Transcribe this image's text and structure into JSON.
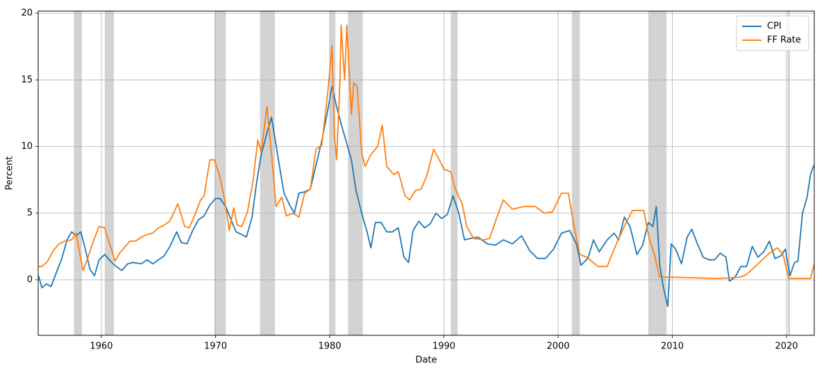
{
  "chart_data": {
    "type": "line",
    "xlabel": "Date",
    "ylabel": "Percent",
    "xlim": [
      1954.47,
      2022.43
    ],
    "ylim": [
      -4.16,
      20.16
    ],
    "xticks": [
      1960,
      1970,
      1980,
      1990,
      2000,
      2010,
      2020
    ],
    "yticks": [
      0,
      5,
      10,
      15,
      20
    ],
    "grid": true,
    "legend": "upper right",
    "recessions": [
      [
        1957.6,
        1958.3
      ],
      [
        1960.3,
        1961.1
      ],
      [
        1969.9,
        1970.9
      ],
      [
        1973.9,
        1975.2
      ],
      [
        1980.0,
        1980.5
      ],
      [
        1981.6,
        1982.9
      ],
      [
        1990.6,
        1991.2
      ],
      [
        2001.2,
        2001.9
      ],
      [
        2007.9,
        2009.5
      ],
      [
        2020.1,
        2020.3
      ]
    ],
    "recession_color": "#d3d3d3",
    "series": [
      {
        "name": "CPI",
        "color": "#1f77b4",
        "x": [
          1954.5,
          1954.8,
          1955.2,
          1955.6,
          1956.0,
          1956.5,
          1957.0,
          1957.4,
          1957.8,
          1958.2,
          1958.6,
          1959.0,
          1959.4,
          1959.8,
          1960.3,
          1960.8,
          1961.3,
          1961.8,
          1962.3,
          1962.8,
          1963.5,
          1964.0,
          1964.5,
          1965.0,
          1965.5,
          1966.0,
          1966.6,
          1967.0,
          1967.5,
          1968.0,
          1968.5,
          1969.0,
          1969.5,
          1970.0,
          1970.4,
          1970.9,
          1971.4,
          1971.8,
          1972.3,
          1972.7,
          1973.2,
          1973.6,
          1974.0,
          1974.5,
          1974.9,
          1975.3,
          1975.7,
          1976.0,
          1976.5,
          1976.9,
          1977.3,
          1977.8,
          1978.3,
          1978.8,
          1979.3,
          1979.8,
          1980.2,
          1980.6,
          1981.0,
          1981.5,
          1981.9,
          1982.3,
          1982.8,
          1983.3,
          1983.6,
          1984.0,
          1984.5,
          1985.0,
          1985.5,
          1986.0,
          1986.5,
          1986.9,
          1987.3,
          1987.8,
          1988.3,
          1988.8,
          1989.3,
          1989.8,
          1990.3,
          1990.8,
          1991.3,
          1991.8,
          1992.3,
          1993.0,
          1993.8,
          1994.5,
          1995.2,
          1996.0,
          1996.8,
          1997.5,
          1998.2,
          1998.9,
          1999.6,
          2000.3,
          2001.0,
          2001.6,
          2002.0,
          2002.6,
          2003.1,
          2003.6,
          2004.3,
          2004.9,
          2005.3,
          2005.8,
          2006.3,
          2006.9,
          2007.4,
          2007.9,
          2008.3,
          2008.6,
          2008.9,
          2009.2,
          2009.6,
          2009.9,
          2010.3,
          2010.8,
          2011.3,
          2011.7,
          2012.2,
          2012.7,
          2013.2,
          2013.7,
          2014.2,
          2014.7,
          2015.0,
          2015.5,
          2016.0,
          2016.5,
          2017.0,
          2017.5,
          2018.0,
          2018.5,
          2019.0,
          2019.5,
          2019.9,
          2020.3,
          2020.7,
          2021.0,
          2021.4,
          2021.8,
          2022.1,
          2022.4
        ],
        "values": [
          0.3,
          -0.6,
          -0.3,
          -0.5,
          0.4,
          1.5,
          3.0,
          3.6,
          3.3,
          3.6,
          2.3,
          0.8,
          0.3,
          1.5,
          1.9,
          1.4,
          1.0,
          0.7,
          1.2,
          1.3,
          1.2,
          1.5,
          1.2,
          1.5,
          1.8,
          2.5,
          3.6,
          2.8,
          2.7,
          3.7,
          4.5,
          4.8,
          5.6,
          6.1,
          6.1,
          5.5,
          4.4,
          3.6,
          3.4,
          3.2,
          4.7,
          7.3,
          9.4,
          11.0,
          12.2,
          10.1,
          8.0,
          6.5,
          5.6,
          5.0,
          6.5,
          6.6,
          6.8,
          8.6,
          10.4,
          12.6,
          14.5,
          13.0,
          11.7,
          10.2,
          9.0,
          6.7,
          5.0,
          3.5,
          2.4,
          4.3,
          4.3,
          3.6,
          3.6,
          3.9,
          1.7,
          1.3,
          3.7,
          4.4,
          3.9,
          4.2,
          5.0,
          4.6,
          4.9,
          6.3,
          5.0,
          3.0,
          3.1,
          3.2,
          2.7,
          2.6,
          3.0,
          2.7,
          3.3,
          2.2,
          1.6,
          1.6,
          2.3,
          3.5,
          3.7,
          2.7,
          1.1,
          1.6,
          3.0,
          2.1,
          3.0,
          3.5,
          3.0,
          4.7,
          4.0,
          1.9,
          2.6,
          4.3,
          4.0,
          5.5,
          1.1,
          -0.5,
          -2.0,
          2.7,
          2.3,
          1.2,
          3.2,
          3.8,
          2.7,
          1.7,
          1.5,
          1.5,
          2.0,
          1.7,
          -0.1,
          0.2,
          1.0,
          1.0,
          2.5,
          1.7,
          2.1,
          2.9,
          1.6,
          1.8,
          2.3,
          0.3,
          1.3,
          1.4,
          5.0,
          6.2,
          7.9,
          8.6
        ]
      },
      {
        "name": "FF Rate",
        "color": "#ff7f0e",
        "x": [
          1954.5,
          1954.8,
          1955.3,
          1955.8,
          1956.3,
          1956.8,
          1957.4,
          1957.8,
          1958.1,
          1958.4,
          1958.8,
          1959.3,
          1959.8,
          1960.3,
          1960.8,
          1961.2,
          1961.6,
          1962.0,
          1962.5,
          1963.0,
          1963.5,
          1964.0,
          1964.5,
          1965.0,
          1965.5,
          1966.0,
          1966.7,
          1967.3,
          1967.7,
          1968.2,
          1968.7,
          1969.0,
          1969.5,
          1969.9,
          1970.3,
          1970.8,
          1971.2,
          1971.6,
          1971.9,
          1972.3,
          1972.8,
          1973.3,
          1973.7,
          1974.0,
          1974.5,
          1974.9,
          1975.3,
          1975.8,
          1976.2,
          1976.8,
          1977.3,
          1977.8,
          1978.3,
          1978.8,
          1979.3,
          1979.8,
          1980.2,
          1980.4,
          1980.6,
          1980.9,
          1981.0,
          1981.3,
          1981.5,
          1981.9,
          1982.1,
          1982.4,
          1982.8,
          1983.1,
          1983.6,
          1984.2,
          1984.6,
          1985.0,
          1985.6,
          1986.0,
          1986.6,
          1987.0,
          1987.5,
          1988.0,
          1988.5,
          1989.1,
          1989.6,
          1990.0,
          1990.6,
          1991.0,
          1991.6,
          1992.0,
          1992.6,
          1993.5,
          1994.0,
          1994.6,
          1995.2,
          1996.0,
          1997.0,
          1998.0,
          1998.8,
          1999.5,
          2000.3,
          2000.9,
          2001.4,
          2001.9,
          2002.5,
          2003.5,
          2004.3,
          2005.0,
          2005.9,
          2006.5,
          2007.5,
          2008.0,
          2008.4,
          2008.9,
          2010,
          2012,
          2014,
          2015.9,
          2016.5,
          2017.5,
          2018.5,
          2019.2,
          2019.7,
          2020.2,
          2021.5,
          2022.1,
          2022.43
        ],
        "values": [
          1.0,
          1.0,
          1.4,
          2.2,
          2.7,
          2.9,
          3.0,
          3.5,
          2.0,
          0.7,
          1.6,
          2.9,
          4.0,
          3.9,
          2.5,
          1.4,
          2.0,
          2.4,
          2.9,
          2.9,
          3.2,
          3.4,
          3.5,
          3.9,
          4.1,
          4.4,
          5.7,
          4.0,
          3.9,
          4.9,
          6.0,
          6.3,
          9.0,
          9.0,
          8.0,
          6.0,
          3.7,
          5.4,
          4.1,
          4.0,
          5.1,
          7.5,
          10.5,
          9.6,
          13.0,
          9.5,
          5.5,
          6.2,
          4.8,
          5.0,
          4.7,
          6.5,
          6.8,
          9.8,
          10.1,
          13.8,
          17.6,
          11.0,
          9.0,
          15.0,
          19.1,
          15.0,
          19.1,
          12.4,
          14.8,
          14.5,
          9.5,
          8.5,
          9.4,
          10.0,
          11.6,
          8.5,
          7.9,
          8.1,
          6.3,
          6.0,
          6.7,
          6.8,
          7.8,
          9.8,
          9.0,
          8.3,
          8.1,
          6.8,
          5.7,
          4.0,
          3.1,
          3.0,
          3.1,
          4.6,
          6.0,
          5.3,
          5.5,
          5.5,
          5.0,
          5.1,
          6.5,
          6.5,
          4.0,
          1.9,
          1.7,
          1.0,
          1.0,
          2.5,
          4.2,
          5.2,
          5.2,
          3.0,
          2.0,
          0.2,
          0.2,
          0.15,
          0.1,
          0.2,
          0.4,
          1.2,
          2.0,
          2.4,
          1.9,
          0.1,
          0.1,
          0.1,
          1.2
        ]
      }
    ]
  }
}
